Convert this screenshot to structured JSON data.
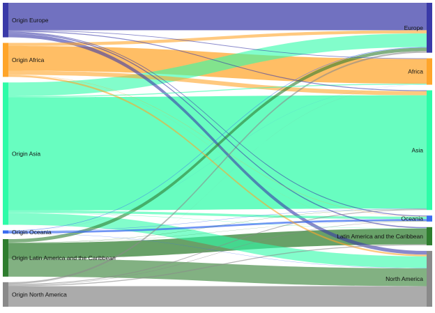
{
  "chart_data": {
    "type": "sankey",
    "title": "",
    "colors": {
      "Europe": "#3a3aa8",
      "Africa": "#ffa52a",
      "Asia": "#2efca8",
      "Oceania": "#3a6cf0",
      "Latin America and the Caribbean": "#2e7d2e",
      "North America": "#8a8a8a"
    },
    "sources": [
      {
        "id": "Europe",
        "label": "Origin Europe"
      },
      {
        "id": "Africa",
        "label": "Origin Africa"
      },
      {
        "id": "Asia",
        "label": "Origin Asia"
      },
      {
        "id": "Oceania",
        "label": "Origin Oceania"
      },
      {
        "id": "Latin America and the Caribbean",
        "label": "Origin Latin America and the Caribbean"
      },
      {
        "id": "North America",
        "label": "Origin North America"
      }
    ],
    "targets": [
      {
        "id": "Europe",
        "label": "Europe"
      },
      {
        "id": "Africa",
        "label": "Africa"
      },
      {
        "id": "Asia",
        "label": "Asia"
      },
      {
        "id": "Oceania",
        "label": "Oceania"
      },
      {
        "id": "Latin America and the Caribbean",
        "label": "Latin America and the Caribbean"
      },
      {
        "id": "North America",
        "label": "North America"
      }
    ],
    "flows": [
      {
        "source": "Europe",
        "target": "Europe",
        "value": 40.0
      },
      {
        "source": "Europe",
        "target": "Africa",
        "value": 0.9
      },
      {
        "source": "Europe",
        "target": "Asia",
        "value": 1.2
      },
      {
        "source": "Europe",
        "target": "Oceania",
        "value": 1.2
      },
      {
        "source": "Europe",
        "target": "Latin America and the Caribbean",
        "value": 1.6
      },
      {
        "source": "Europe",
        "target": "North America",
        "value": 5.4
      },
      {
        "source": "Africa",
        "target": "Europe",
        "value": 4.5
      },
      {
        "source": "Africa",
        "target": "Africa",
        "value": 36.0
      },
      {
        "source": "Africa",
        "target": "Asia",
        "value": 6.0
      },
      {
        "source": "Africa",
        "target": "Oceania",
        "value": 0.4
      },
      {
        "source": "Africa",
        "target": "Latin America and the Caribbean",
        "value": 0.1
      },
      {
        "source": "Africa",
        "target": "North America",
        "value": 2.5
      },
      {
        "source": "Asia",
        "target": "Europe",
        "value": 20.0
      },
      {
        "source": "Asia",
        "target": "Africa",
        "value": 1.4
      },
      {
        "source": "Asia",
        "target": "Asia",
        "value": 165.0
      },
      {
        "source": "Asia",
        "target": "Oceania",
        "value": 3.5
      },
      {
        "source": "Asia",
        "target": "Latin America and the Caribbean",
        "value": 0.4
      },
      {
        "source": "Asia",
        "target": "North America",
        "value": 17.0
      },
      {
        "source": "Oceania",
        "target": "Europe",
        "value": 0.8
      },
      {
        "source": "Oceania",
        "target": "Africa",
        "value": 0.1
      },
      {
        "source": "Oceania",
        "target": "Asia",
        "value": 0.5
      },
      {
        "source": "Oceania",
        "target": "Oceania",
        "value": 2.8
      },
      {
        "source": "Oceania",
        "target": "North America",
        "value": 0.4
      },
      {
        "source": "Latin America and the Caribbean",
        "target": "Europe",
        "value": 5.0
      },
      {
        "source": "Latin America and the Caribbean",
        "target": "Asia",
        "value": 0.4
      },
      {
        "source": "Latin America and the Caribbean",
        "target": "Oceania",
        "value": 0.2
      },
      {
        "source": "Latin America and the Caribbean",
        "target": "Latin America and the Caribbean",
        "value": 23.0
      },
      {
        "source": "Latin America and the Caribbean",
        "target": "North America",
        "value": 26.0
      },
      {
        "source": "North America",
        "target": "Europe",
        "value": 2.4
      },
      {
        "source": "North America",
        "target": "Africa",
        "value": 0.1
      },
      {
        "source": "North America",
        "target": "Asia",
        "value": 1.2
      },
      {
        "source": "North America",
        "target": "Oceania",
        "value": 0.6
      },
      {
        "source": "North America",
        "target": "Latin America and the Caribbean",
        "value": 1.4
      },
      {
        "source": "North America",
        "target": "North America",
        "value": 30.0
      }
    ]
  }
}
